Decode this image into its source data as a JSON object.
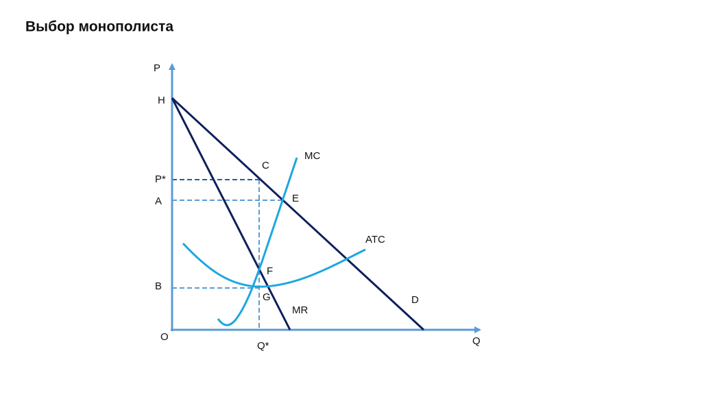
{
  "title": "Выбор монополиста",
  "labels": [
    "P",
    "H",
    "C",
    "MC",
    "P*",
    "A",
    "E",
    "ATC",
    "F",
    "B",
    "G",
    "D",
    "MR",
    "O",
    "Q*",
    "Q"
  ]
}
